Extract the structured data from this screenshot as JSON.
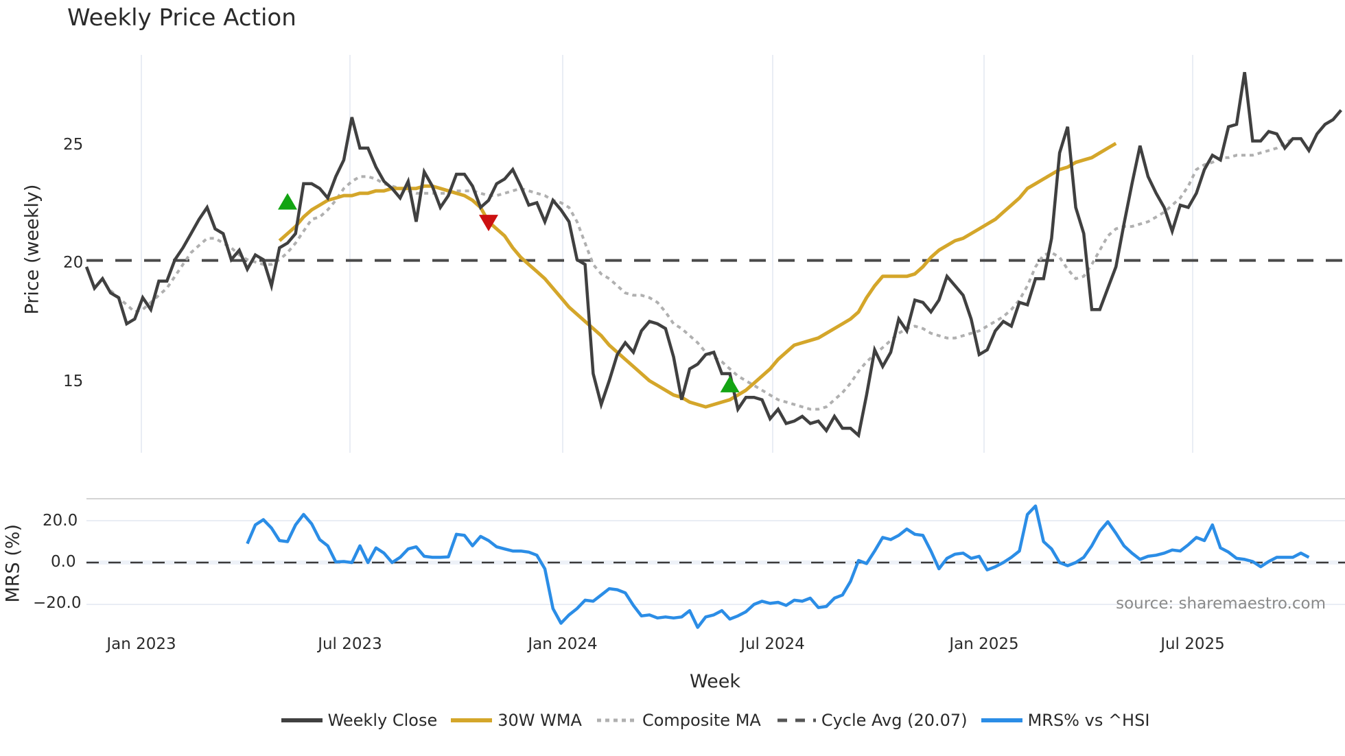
{
  "title": "Weekly Price Action",
  "price_panel": {
    "ylabel": "Price (weekly)",
    "yticks": [
      "25",
      "20",
      "15"
    ]
  },
  "mrs_panel": {
    "ylabel": "MRS (%)",
    "yticks": [
      "20.0",
      "0.0",
      "−20.0"
    ]
  },
  "xaxis": {
    "label": "Week",
    "ticks": [
      "Jan 2023",
      "Jul 2023",
      "Jan 2024",
      "Jul 2024",
      "Jan 2025",
      "Jul 2025"
    ]
  },
  "source": "source: sharemaestro.com",
  "legend": [
    {
      "label": "Weekly Close",
      "color": "#404040",
      "style": "solid"
    },
    {
      "label": "30W WMA",
      "color": "#d4a62a",
      "style": "solid"
    },
    {
      "label": "Composite MA",
      "color": "#b0b0b0",
      "style": "dotted"
    },
    {
      "label": "Cycle Avg (20.07)",
      "color": "#555555",
      "style": "dashed"
    },
    {
      "label": "MRS% vs ^HSI",
      "color": "#2b8de6",
      "style": "solid"
    }
  ],
  "colors": {
    "close": "#404040",
    "wma": "#d4a62a",
    "composite": "#b0b0b0",
    "cycle": "#4a4a4a",
    "mrs": "#2b8de6",
    "buy_marker": "#13a413",
    "sell_marker": "#cc1111",
    "grid": "#e9edf4"
  },
  "chart_data": [
    {
      "type": "line",
      "title": "Weekly Price Action",
      "xlabel": "Week",
      "ylabel": "Price (weekly)",
      "x_start": "2022-11-14",
      "x_step": "1 week",
      "x_ticks": [
        "Jan 2023",
        "Jul 2023",
        "Jan 2024",
        "Jul 2024",
        "Jan 2025",
        "Jul 2025"
      ],
      "ylim": [
        11.8,
        28.8
      ],
      "yticks": [
        15,
        20,
        25
      ],
      "grid": true,
      "legend_position": "bottom",
      "series": [
        {
          "name": "Weekly Close",
          "values": [
            19.8,
            18.9,
            19.3,
            18.7,
            18.5,
            17.4,
            17.6,
            18.5,
            18.0,
            19.2,
            19.2,
            20.1,
            20.6,
            21.2,
            21.8,
            22.3,
            21.4,
            21.2,
            20.1,
            20.5,
            19.7,
            20.3,
            20.1,
            19.0,
            20.6,
            20.8,
            21.2,
            23.3,
            23.3,
            23.1,
            22.7,
            23.6,
            24.3,
            26.1,
            24.8,
            24.8,
            24.0,
            23.4,
            23.1,
            22.7,
            23.4,
            21.7,
            23.8,
            23.2,
            22.3,
            22.8,
            23.7,
            23.7,
            23.2,
            22.3,
            22.6,
            23.3,
            23.5,
            23.9,
            23.2,
            22.4,
            22.5,
            21.7,
            22.6,
            22.2,
            21.7,
            20.1,
            19.9,
            15.3,
            14.0,
            15.0,
            16.1,
            16.6,
            16.2,
            17.1,
            17.5,
            17.4,
            17.2,
            16.0,
            14.2,
            15.5,
            15.7,
            16.1,
            16.2,
            15.3,
            15.3,
            13.8,
            14.3,
            14.3,
            14.2,
            13.4,
            13.8,
            13.2,
            13.3,
            13.5,
            13.2,
            13.3,
            12.9,
            13.5,
            13.0,
            13.0,
            12.7,
            14.4,
            16.3,
            15.6,
            16.2,
            17.6,
            17.1,
            18.4,
            18.3,
            17.9,
            18.4,
            19.4,
            19.0,
            18.6,
            17.6,
            16.1,
            16.3,
            17.1,
            17.5,
            17.3,
            18.3,
            18.2,
            19.3,
            19.3,
            21.0,
            24.6,
            25.7,
            22.3,
            21.2,
            18.0,
            18.0,
            18.9,
            19.8,
            21.6,
            23.3,
            24.9,
            23.6,
            22.9,
            22.3,
            21.3,
            22.4,
            22.3,
            22.9,
            23.9,
            24.5,
            24.3,
            25.7,
            25.8,
            28.0,
            25.1,
            25.1,
            25.5,
            25.4,
            24.8,
            25.2,
            25.2,
            24.7,
            25.4,
            25.8,
            26.0,
            26.4
          ]
        },
        {
          "name": "30W WMA",
          "start_index": 24,
          "values": [
            null,
            null,
            null,
            null,
            null,
            null,
            null,
            null,
            null,
            null,
            null,
            null,
            null,
            null,
            null,
            null,
            null,
            null,
            null,
            null,
            null,
            null,
            null,
            null,
            20.9,
            21.2,
            21.5,
            21.9,
            22.2,
            22.4,
            22.6,
            22.7,
            22.8,
            22.8,
            22.9,
            22.9,
            23.0,
            23.0,
            23.1,
            23.1,
            23.1,
            23.1,
            23.2,
            23.2,
            23.1,
            23.0,
            22.9,
            22.8,
            22.6,
            22.3,
            21.7,
            21.4,
            21.1,
            20.6,
            20.2,
            19.9,
            19.6,
            19.3,
            18.9,
            18.5,
            18.1,
            17.8,
            17.5,
            17.2,
            16.9,
            16.5,
            16.2,
            15.9,
            15.6,
            15.3,
            15.0,
            14.8,
            14.6,
            14.4,
            14.3,
            14.1,
            14.0,
            13.9,
            14.0,
            14.1,
            14.2,
            14.4,
            14.6,
            14.9,
            15.2,
            15.5,
            15.9,
            16.2,
            16.5,
            16.6,
            16.7,
            16.8,
            17.0,
            17.2,
            17.4,
            17.6,
            17.9,
            18.5,
            19.0,
            19.4,
            19.4,
            19.4,
            19.4,
            19.5,
            19.8,
            20.2,
            20.5,
            20.7,
            20.9,
            21.0,
            21.2,
            21.4,
            21.6,
            21.8,
            22.1,
            22.4,
            22.7,
            23.1,
            23.3,
            23.5,
            23.7,
            23.9,
            24.0,
            24.2,
            24.3,
            24.4,
            24.6,
            24.8,
            25.0
          ]
        },
        {
          "name": "Composite MA",
          "values": [
            null,
            null,
            null,
            18.8,
            18.5,
            18.2,
            17.9,
            18.0,
            18.3,
            18.6,
            18.9,
            19.4,
            19.9,
            20.4,
            20.7,
            21.0,
            21.0,
            20.8,
            20.6,
            20.3,
            20.1,
            20.0,
            19.9,
            19.9,
            20.1,
            20.4,
            20.8,
            21.3,
            21.8,
            21.9,
            22.2,
            22.6,
            23.1,
            23.4,
            23.6,
            23.6,
            23.5,
            23.3,
            23.2,
            23.1,
            23.0,
            22.9,
            22.9,
            22.9,
            22.9,
            22.9,
            23.0,
            23.0,
            23.0,
            22.9,
            22.8,
            22.8,
            22.9,
            23.0,
            23.1,
            23.0,
            22.9,
            22.8,
            22.6,
            22.5,
            22.3,
            21.7,
            20.8,
            19.9,
            19.5,
            19.3,
            19.0,
            18.7,
            18.6,
            18.6,
            18.5,
            18.3,
            17.9,
            17.4,
            17.2,
            16.9,
            16.6,
            16.2,
            16.0,
            15.8,
            15.5,
            15.2,
            15.0,
            14.8,
            14.6,
            14.4,
            14.2,
            14.1,
            14.0,
            13.9,
            13.8,
            13.8,
            13.9,
            14.2,
            14.5,
            14.9,
            15.4,
            15.8,
            16.1,
            16.4,
            16.7,
            17.0,
            17.2,
            17.3,
            17.2,
            17.0,
            16.9,
            16.8,
            16.8,
            16.9,
            17.0,
            17.1,
            17.3,
            17.5,
            17.7,
            18.0,
            18.4,
            19.0,
            19.8,
            20.3,
            20.4,
            20.2,
            19.7,
            19.3,
            19.4,
            19.9,
            20.5,
            21.1,
            21.4,
            21.5,
            21.5,
            21.6,
            21.7,
            21.9,
            22.1,
            22.4,
            22.7,
            23.2,
            23.9,
            24.1,
            24.2,
            24.4,
            24.4,
            24.5,
            24.5,
            24.5,
            24.6,
            24.7,
            24.8,
            25.0,
            25.2
          ]
        },
        {
          "name": "Cycle Avg (20.07)",
          "value": 20.07
        }
      ],
      "markers": [
        {
          "type": "buy",
          "shape": "triangle-up",
          "index": 25,
          "y": 22.5
        },
        {
          "type": "sell",
          "shape": "triangle-down",
          "index": 50,
          "y": 21.7
        },
        {
          "type": "buy",
          "shape": "triangle-up",
          "index": 80,
          "y": 14.8
        }
      ]
    },
    {
      "type": "line",
      "ylabel": "MRS (%)",
      "ylim": [
        -30,
        28
      ],
      "yticks": [
        -20,
        0,
        20
      ],
      "grid": true,
      "series": [
        {
          "name": "MRS% vs ^HSI",
          "values": [
            null,
            null,
            null,
            null,
            null,
            null,
            null,
            null,
            null,
            null,
            null,
            null,
            null,
            null,
            null,
            null,
            null,
            null,
            null,
            null,
            null,
            null,
            null,
            null,
            null,
            null,
            null,
            null,
            null,
            null,
            null,
            null,
            null,
            null,
            null,
            null,
            null,
            null,
            null,
            null,
            null,
            null,
            null,
            null,
            null,
            null,
            null,
            null,
            null,
            null,
            null,
            null,
            null,
            null,
            null,
            null,
            null,
            null,
            null,
            null,
            null,
            null,
            null,
            null,
            null,
            null,
            null,
            null,
            null,
            null,
            null,
            null,
            null,
            null,
            null,
            null,
            null,
            null,
            null,
            null,
            null,
            null,
            null,
            null,
            null,
            null,
            null,
            null,
            null,
            null,
            null,
            null,
            null,
            null,
            null,
            null,
            null,
            null,
            null,
            null,
            null,
            null,
            null,
            null,
            null,
            null,
            null,
            null,
            null,
            null,
            null,
            null,
            null,
            null,
            null,
            null,
            null,
            null,
            null,
            null,
            null,
            null,
            null,
            null,
            null,
            null,
            null,
            null,
            null,
            null,
            null,
            null,
            null,
            null,
            null,
            null,
            null,
            null,
            null,
            null,
            null,
            null,
            null,
            null,
            null,
            null,
            null,
            null,
            null,
            null,
            null,
            null,
            null,
            null,
            null,
            null,
            null,
            null,
            null,
            null,
            null,
            null,
            null,
            null
          ]
        }
      ],
      "mrs_start_index": 20,
      "mrs_values": [
        9.0,
        18.0,
        20.5,
        16.5,
        10.5,
        10.0,
        18.0,
        23.0,
        18.5,
        11.0,
        8.0,
        0.3,
        0.5,
        0.0,
        8.0,
        0.0,
        7.0,
        4.5,
        0.0,
        2.5,
        6.5,
        7.5,
        3.0,
        2.5,
        2.5,
        2.7,
        13.5,
        13.0,
        8.0,
        12.5,
        10.5,
        7.5,
        6.5,
        5.5,
        5.5,
        5.0,
        3.5,
        -3.0,
        -22.0,
        -29.0,
        -25.0,
        -22.0,
        -18.0,
        -18.5,
        -15.5,
        -12.5,
        -13.0,
        -14.5,
        -20.5,
        -25.5,
        -25.0,
        -26.5,
        -26.0,
        -26.5,
        -26.0,
        -23.0,
        -31.0,
        -26.0,
        -25.0,
        -23.0,
        -27.0,
        -25.5,
        -23.5,
        -20.0,
        -18.5,
        -19.5,
        -19.0,
        -20.5,
        -18.0,
        -18.5,
        -17.0,
        -21.5,
        -21.0,
        -17.0,
        -15.5,
        -9.0,
        1.0,
        -0.5,
        5.5,
        12.0,
        11.0,
        13.0,
        16.0,
        13.5,
        13.0,
        5.5,
        -3.0,
        2.0,
        4.0,
        4.5,
        2.0,
        3.0,
        -3.5,
        -2.0,
        0.0,
        2.5,
        5.5,
        23.0,
        27.0,
        10.0,
        6.5,
        0.0,
        -1.5,
        0.0,
        2.5,
        8.0,
        15.0,
        19.5,
        14.0,
        8.0,
        4.5,
        1.5,
        3.0,
        3.5,
        4.5,
        6.0,
        5.5,
        8.5,
        12.0,
        10.5,
        18.0,
        7.0,
        5.0,
        2.0,
        1.5,
        0.5,
        -2.0,
        0.5,
        2.5,
        2.5,
        2.5,
        4.5,
        2.5
      ]
    }
  ]
}
